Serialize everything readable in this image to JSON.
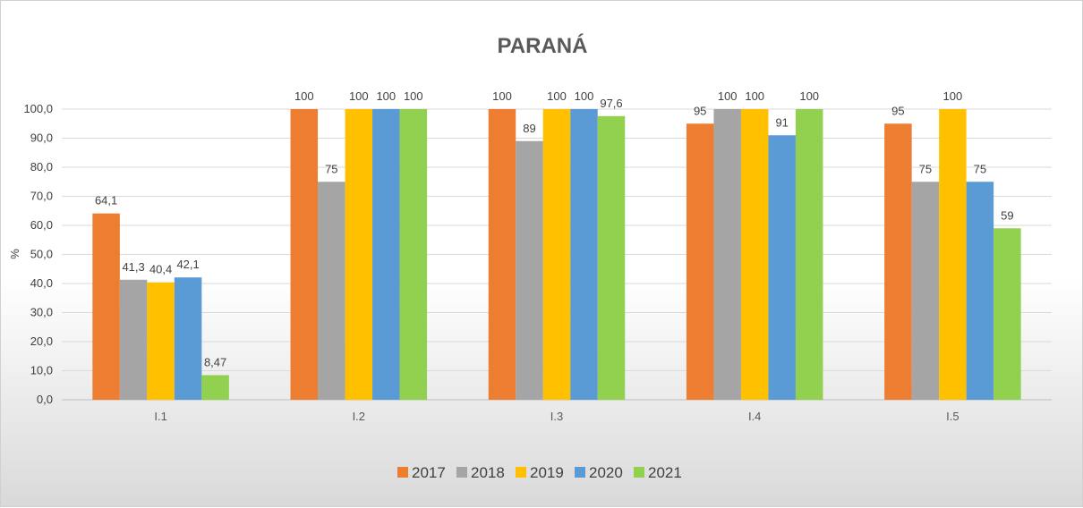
{
  "chart_data": {
    "type": "bar",
    "title": "PARANÁ",
    "xlabel": "",
    "ylabel": "%",
    "ylim": [
      0,
      100
    ],
    "yticks": [
      "0,0",
      "10,0",
      "20,0",
      "30,0",
      "40,0",
      "50,0",
      "60,0",
      "70,0",
      "80,0",
      "90,0",
      "100,0"
    ],
    "categories": [
      "I.1",
      "I.2",
      "I.3",
      "I.4",
      "I.5"
    ],
    "grid": true,
    "legend_position": "bottom",
    "series": [
      {
        "name": "2017",
        "color": "#ED7D31",
        "values": [
          64.1,
          100,
          100,
          95,
          95
        ],
        "labels": [
          "64,1",
          "100",
          "100",
          "95",
          "95"
        ]
      },
      {
        "name": "2018",
        "color": "#A5A5A5",
        "values": [
          41.3,
          75,
          89,
          100,
          75
        ],
        "labels": [
          "41,3",
          "75",
          "89",
          "100",
          "75"
        ]
      },
      {
        "name": "2019",
        "color": "#FFC000",
        "values": [
          40.4,
          100,
          100,
          100,
          100
        ],
        "labels": [
          "40,4",
          "100",
          "100",
          "100",
          "100"
        ]
      },
      {
        "name": "2020",
        "color": "#5B9BD5",
        "values": [
          42.1,
          100,
          100,
          91,
          75
        ],
        "labels": [
          "42,1",
          "100",
          "100",
          "91",
          "75"
        ]
      },
      {
        "name": "2021",
        "color": "#92D050",
        "values": [
          8.47,
          100,
          97.6,
          100,
          59
        ],
        "labels": [
          "8,47",
          "100",
          "97,6",
          "100",
          "59"
        ]
      }
    ]
  }
}
